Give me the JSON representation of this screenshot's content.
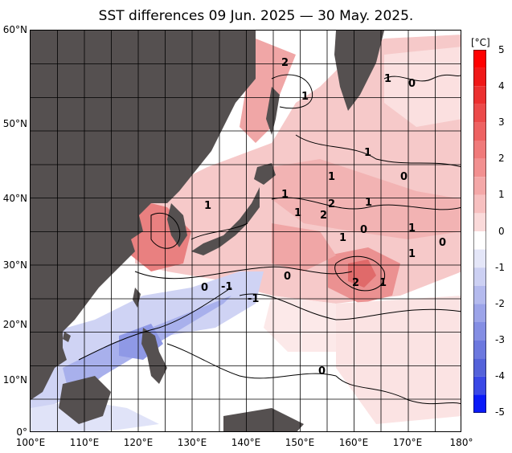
{
  "title": "SST differences 09 Jun. 2025 — 30 May. 2025.",
  "lat_labels": [
    "60°N",
    "50°N",
    "40°N",
    "30°N",
    "20°N",
    "10°N",
    "0°"
  ],
  "lon_labels": [
    "100°E",
    "110°E",
    "120°E",
    "130°E",
    "140°E",
    "150°E",
    "160°E",
    "170°E",
    "180°"
  ],
  "colorbar": {
    "unit": "[°C]",
    "ticks": [
      "5",
      "4",
      "3",
      "2",
      "1",
      "0",
      "-1",
      "-2",
      "-3",
      "-4",
      "-5"
    ],
    "range": [
      -5,
      5
    ]
  },
  "contour_labels": [
    "2",
    "1",
    "1",
    "0",
    "1",
    "0",
    "1",
    "1",
    "1",
    "2",
    "2",
    "1",
    "1",
    "0",
    "1",
    "1",
    "0",
    "1",
    "0",
    "-1",
    "0",
    "2",
    "1",
    "-1",
    "0"
  ],
  "colors": {
    "land": "#555050",
    "sea_ice": "#ffffff",
    "grid": "#000000",
    "warm_max": "#ff0000",
    "cool_max": "#0000ff"
  }
}
